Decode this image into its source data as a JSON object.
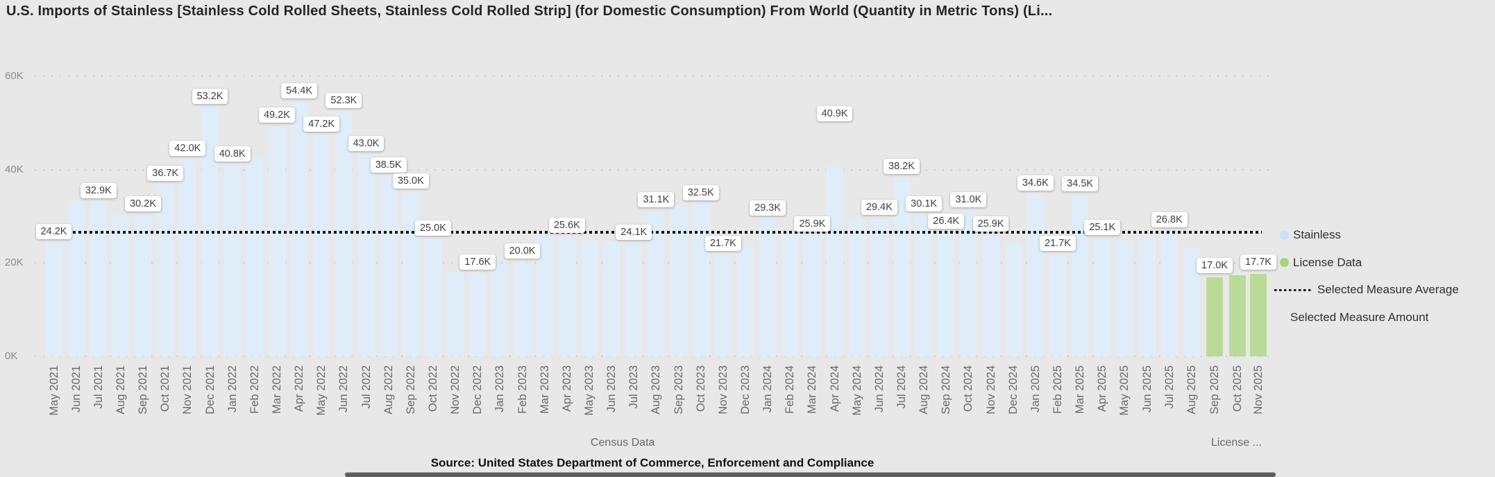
{
  "title": "U.S. Imports of Stainless [Stainless Cold Rolled Sheets, Stainless Cold Rolled Strip]  (for Domestic Consumption) From World  (Quantity in Metric Tons) (Li...",
  "source_note": "Source: United States Department of Commerce, Enforcement and Compliance",
  "colors": {
    "background": "#E8E8E8",
    "stainless_bar": "#DFEDFB",
    "license_bar": "#BADB98",
    "legend_stainless": "#C9E2F8",
    "legend_license": "#A6D477",
    "average_line": "#161616",
    "label_box_bg": "#FFFFFF",
    "label_text": "#3F3F3F",
    "axis_text": "#8A8A8A",
    "month_text": "#6A6A6A",
    "gridline": "#CBCBCB",
    "title_text": "#252525",
    "scrollbar": "#5E5E5E"
  },
  "legend": {
    "items": [
      {
        "label": "Stainless",
        "marker": "circle",
        "color": "#C9E2F8"
      },
      {
        "label": "License Data",
        "marker": "circle",
        "color": "#A6D477"
      },
      {
        "label": "Selected Measure Average",
        "marker": "dots",
        "color": "#161616"
      },
      {
        "label": "Selected Measure Amount",
        "marker": "none",
        "color": ""
      }
    ]
  },
  "chart_data": {
    "type": "bar",
    "title": "U.S. Imports of Stainless [Stainless Cold Rolled Sheets, Stainless Cold Rolled Strip]  (for Domestic Consumption) From World  (Quantity in Metric Tons) (Li...",
    "xlabel": "",
    "ylabel": "",
    "ylim": [
      0,
      60000
    ],
    "grid": true,
    "legend_position": "right",
    "y_ticks": [
      {
        "label": "0K",
        "value": 0
      },
      {
        "label": "20K",
        "value": 20000
      },
      {
        "label": "40K",
        "value": 40000
      },
      {
        "label": "60K",
        "value": 60000
      }
    ],
    "average_line": {
      "name": "Selected Measure Average",
      "value": 26600
    },
    "xlabel_groups": [
      {
        "label": "Census Data",
        "series": "Stainless"
      },
      {
        "label": "License ...",
        "series": "License Data"
      }
    ],
    "points": [
      {
        "month": "May 2021",
        "series": "Stainless",
        "value": 24200,
        "label": "24.2K"
      },
      {
        "month": "Jun 2021",
        "series": "Stainless",
        "value": 33000,
        "label": null
      },
      {
        "month": "Jul 2021",
        "series": "Stainless",
        "value": 32900,
        "label": "32.9K"
      },
      {
        "month": "Aug 2021",
        "series": "Stainless",
        "value": 30300,
        "label": null
      },
      {
        "month": "Sep 2021",
        "series": "Stainless",
        "value": 30200,
        "label": "30.2K"
      },
      {
        "month": "Oct 2021",
        "series": "Stainless",
        "value": 36700,
        "label": "36.7K"
      },
      {
        "month": "Nov 2021",
        "series": "Stainless",
        "value": 42000,
        "label": "42.0K"
      },
      {
        "month": "Dec 2021",
        "series": "Stainless",
        "value": 53200,
        "label": "53.2K"
      },
      {
        "month": "Jan 2022",
        "series": "Stainless",
        "value": 40800,
        "label": "40.8K"
      },
      {
        "month": "Feb 2022",
        "series": "Stainless",
        "value": 42400,
        "label": null
      },
      {
        "month": "Mar 2022",
        "series": "Stainless",
        "value": 49200,
        "label": "49.2K"
      },
      {
        "month": "Apr 2022",
        "series": "Stainless",
        "value": 54400,
        "label": "54.4K"
      },
      {
        "month": "May 2022",
        "series": "Stainless",
        "value": 47200,
        "label": "47.2K"
      },
      {
        "month": "Jun 2022",
        "series": "Stainless",
        "value": 52300,
        "label": "52.3K"
      },
      {
        "month": "Jul 2022",
        "series": "Stainless",
        "value": 43000,
        "label": "43.0K"
      },
      {
        "month": "Aug 2022",
        "series": "Stainless",
        "value": 38500,
        "label": "38.5K"
      },
      {
        "month": "Sep 2022",
        "series": "Stainless",
        "value": 35000,
        "label": "35.0K"
      },
      {
        "month": "Oct 2022",
        "series": "Stainless",
        "value": 25000,
        "label": "25.0K"
      },
      {
        "month": "Nov 2022",
        "series": "Stainless",
        "value": 18000,
        "label": null
      },
      {
        "month": "Dec 2022",
        "series": "Stainless",
        "value": 17600,
        "label": "17.6K"
      },
      {
        "month": "Jan 2023",
        "series": "Stainless",
        "value": 19800,
        "label": null
      },
      {
        "month": "Feb 2023",
        "series": "Stainless",
        "value": 20000,
        "label": "20.0K"
      },
      {
        "month": "Mar 2023",
        "series": "Stainless",
        "value": 25800,
        "label": null
      },
      {
        "month": "Apr 2023",
        "series": "Stainless",
        "value": 25600,
        "label": "25.6K"
      },
      {
        "month": "May 2023",
        "series": "Stainless",
        "value": 24800,
        "label": null
      },
      {
        "month": "Jun 2023",
        "series": "Stainless",
        "value": 24600,
        "label": null
      },
      {
        "month": "Jul 2023",
        "series": "Stainless",
        "value": 24100,
        "label": "24.1K"
      },
      {
        "month": "Aug 2023",
        "series": "Stainless",
        "value": 31100,
        "label": "31.1K"
      },
      {
        "month": "Sep 2023",
        "series": "Stainless",
        "value": 32000,
        "label": null
      },
      {
        "month": "Oct 2023",
        "series": "Stainless",
        "value": 32500,
        "label": "32.5K"
      },
      {
        "month": "Nov 2023",
        "series": "Stainless",
        "value": 21700,
        "label": "21.7K"
      },
      {
        "month": "Dec 2023",
        "series": "Stainless",
        "value": 23600,
        "label": null
      },
      {
        "month": "Jan 2024",
        "series": "Stainless",
        "value": 29300,
        "label": "29.3K"
      },
      {
        "month": "Feb 2024",
        "series": "Stainless",
        "value": 25800,
        "label": null
      },
      {
        "month": "Mar 2024",
        "series": "Stainless",
        "value": 25900,
        "label": "25.9K"
      },
      {
        "month": "Apr 2024",
        "series": "Stainless",
        "value": 40900,
        "label": "40.9K",
        "label_dy": -58
      },
      {
        "month": "May 2024",
        "series": "Stainless",
        "value": 29200,
        "label": null
      },
      {
        "month": "Jun 2024",
        "series": "Stainless",
        "value": 29400,
        "label": "29.4K"
      },
      {
        "month": "Jul 2024",
        "series": "Stainless",
        "value": 38200,
        "label": "38.2K"
      },
      {
        "month": "Aug 2024",
        "series": "Stainless",
        "value": 30100,
        "label": "30.1K"
      },
      {
        "month": "Sep 2024",
        "series": "Stainless",
        "value": 26400,
        "label": "26.4K"
      },
      {
        "month": "Oct 2024",
        "series": "Stainless",
        "value": 31000,
        "label": "31.0K"
      },
      {
        "month": "Nov 2024",
        "series": "Stainless",
        "value": 25900,
        "label": "25.9K"
      },
      {
        "month": "Dec 2024",
        "series": "Stainless",
        "value": 24100,
        "label": null
      },
      {
        "month": "Jan 2025",
        "series": "Stainless",
        "value": 34600,
        "label": "34.6K"
      },
      {
        "month": "Feb 2025",
        "series": "Stainless",
        "value": 21700,
        "label": "21.7K"
      },
      {
        "month": "Mar 2025",
        "series": "Stainless",
        "value": 34500,
        "label": "34.5K"
      },
      {
        "month": "Apr 2025",
        "series": "Stainless",
        "value": 25100,
        "label": "25.1K"
      },
      {
        "month": "May 2025",
        "series": "Stainless",
        "value": 24800,
        "label": null
      },
      {
        "month": "Jun 2025",
        "series": "Stainless",
        "value": 25200,
        "label": null
      },
      {
        "month": "Jul 2025",
        "series": "Stainless",
        "value": 26800,
        "label": "26.8K"
      },
      {
        "month": "Aug 2025",
        "series": "Stainless",
        "value": 23200,
        "label": null
      },
      {
        "month": "Sep 2025",
        "series": "License Data",
        "value": 17000,
        "label": "17.0K"
      },
      {
        "month": "Oct 2025",
        "series": "License Data",
        "value": 17400,
        "label": null
      },
      {
        "month": "Nov 2025",
        "series": "License Data",
        "value": 17700,
        "label": "17.7K"
      }
    ]
  }
}
